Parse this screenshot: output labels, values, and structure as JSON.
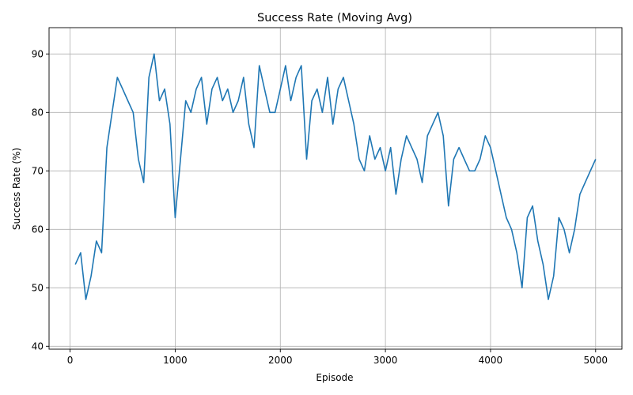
{
  "chart_data": {
    "type": "line",
    "title": "Success Rate (Moving Avg)",
    "xlabel": "Episode",
    "ylabel": "Success Rate (%)",
    "xlim": [
      -200,
      5250
    ],
    "ylim": [
      39.5,
      94.5
    ],
    "xticks": [
      0,
      1000,
      2000,
      3000,
      4000,
      5000
    ],
    "yticks": [
      40,
      50,
      60,
      70,
      80,
      90
    ],
    "grid": true,
    "series_color": "#1f77b4",
    "series": [
      {
        "x": [
          50,
          100,
          150,
          200,
          250,
          300,
          350,
          400,
          450,
          500,
          550,
          600,
          650,
          700,
          750,
          800,
          850,
          900,
          950,
          1000,
          1050,
          1100,
          1150,
          1200,
          1250,
          1300,
          1350,
          1400,
          1450,
          1500,
          1550,
          1600,
          1650,
          1700,
          1750,
          1800,
          1850,
          1900,
          1950,
          2000,
          2050,
          2100,
          2150,
          2200,
          2250,
          2300,
          2350,
          2400,
          2450,
          2500,
          2550,
          2600,
          2650,
          2700,
          2750,
          2800,
          2850,
          2900,
          2950,
          3000,
          3050,
          3100,
          3150,
          3200,
          3250,
          3300,
          3350,
          3400,
          3450,
          3500,
          3550,
          3600,
          3650,
          3700,
          3750,
          3800,
          3850,
          3900,
          3950,
          4000,
          4050,
          4100,
          4150,
          4200,
          4250,
          4300,
          4350,
          4400,
          4450,
          4500,
          4550,
          4600,
          4650,
          4700,
          4750,
          4800,
          4850,
          4900,
          4950,
          5000
        ],
        "y": [
          54,
          56,
          48,
          52,
          58,
          56,
          74,
          80,
          86,
          84,
          82,
          80,
          72,
          68,
          86,
          90,
          82,
          84,
          78,
          62,
          72,
          82,
          80,
          84,
          86,
          78,
          84,
          86,
          82,
          84,
          80,
          82,
          86,
          78,
          74,
          88,
          84,
          80,
          80,
          84,
          88,
          82,
          86,
          88,
          72,
          82,
          84,
          80,
          86,
          78,
          84,
          86,
          82,
          78,
          72,
          70,
          76,
          72,
          74,
          70,
          74,
          66,
          72,
          76,
          74,
          72,
          68,
          76,
          78,
          80,
          76,
          64,
          72,
          74,
          72,
          70,
          70,
          72,
          76,
          74,
          70,
          66,
          62,
          60,
          56,
          50,
          62,
          64,
          58,
          54,
          48,
          52,
          62,
          60,
          56,
          60,
          66,
          68,
          70,
          72
        ]
      }
    ]
  }
}
